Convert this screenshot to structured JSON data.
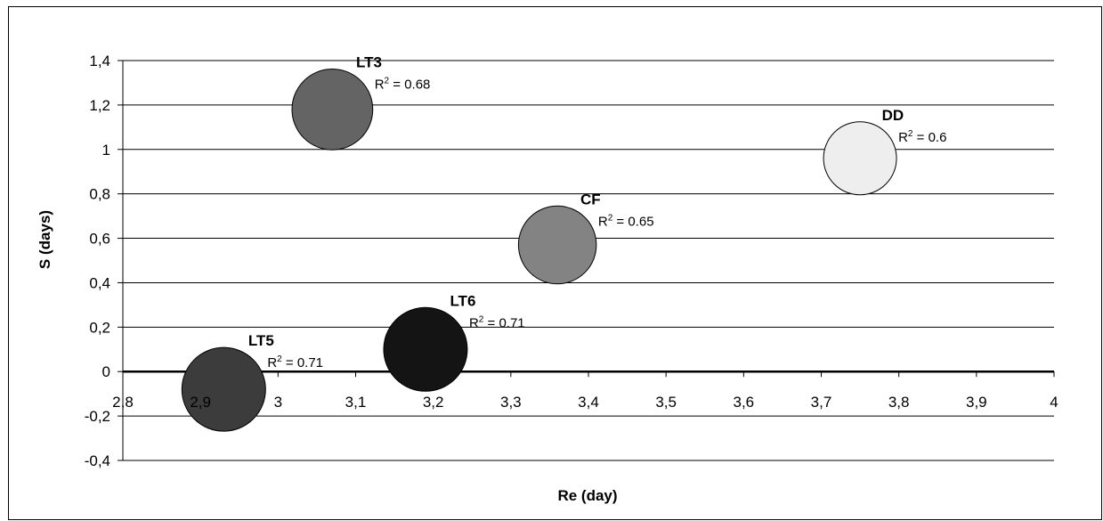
{
  "chart_data": {
    "type": "bubble",
    "xlabel": "Re (day)",
    "ylabel": "S (days)",
    "xlim": [
      2.8,
      4
    ],
    "ylim": [
      -0.4,
      1.4
    ],
    "x_ticks": [
      2.8,
      2.9,
      3.0,
      3.1,
      3.2,
      3.3,
      3.4,
      3.5,
      3.6,
      3.7,
      3.8,
      3.9,
      4.0
    ],
    "x_tick_labels": [
      "2,8",
      "2,9",
      "3",
      "3,1",
      "3,2",
      "3,3",
      "3,4",
      "3,5",
      "3,6",
      "3,7",
      "3,8",
      "3,9",
      "4"
    ],
    "y_ticks": [
      -0.4,
      -0.2,
      0,
      0.2,
      0.4,
      0.6,
      0.8,
      1.0,
      1.2,
      1.4
    ],
    "y_tick_labels": [
      "-0,4",
      "-0,2",
      "0",
      "0,2",
      "0,4",
      "0,6",
      "0,8",
      "1",
      "1,2",
      "1,4"
    ],
    "grid": "horizontal",
    "legend": "none",
    "points": [
      {
        "label": "LT3",
        "r2_text": "= 0.68",
        "x": 3.07,
        "y": 1.18,
        "size": 0.68,
        "color": "#646464"
      },
      {
        "label": "DD",
        "r2_text": "=  0.6",
        "x": 3.75,
        "y": 0.96,
        "size": 0.6,
        "color": "#eeeeee"
      },
      {
        "label": "CF",
        "r2_text": "= 0.65",
        "x": 3.36,
        "y": 0.57,
        "size": 0.65,
        "color": "#838383"
      },
      {
        "label": "LT6",
        "r2_text": "=  0.71",
        "x": 3.19,
        "y": 0.1,
        "size": 0.71,
        "color": "#141414"
      },
      {
        "label": "LT5",
        "r2_text": "= 0.71",
        "x": 2.93,
        "y": -0.08,
        "size": 0.71,
        "color": "#3c3c3c"
      }
    ]
  }
}
